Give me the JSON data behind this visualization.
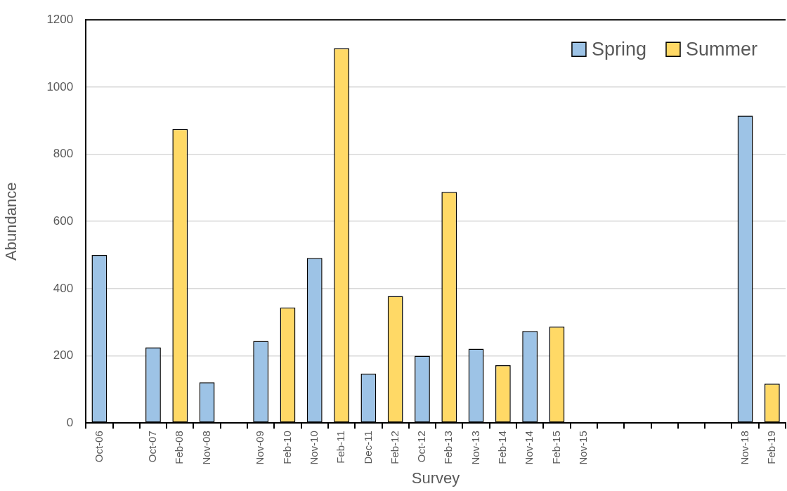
{
  "chart_data": {
    "type": "bar",
    "xlabel": "Survey",
    "ylabel": "Abundance",
    "categories": [
      "Oct-06",
      null,
      "Oct-07",
      "Feb-08",
      "Nov-08",
      null,
      "Nov-09",
      "Feb-10",
      "Nov-10",
      "Feb-11",
      "Dec-11",
      "Feb-12",
      "Oct-12",
      "Feb-13",
      "Nov-13",
      "Feb-14",
      "Nov-14",
      "Feb-15",
      "Nov-15",
      null,
      null,
      null,
      null,
      null,
      "Nov-18",
      "Feb-19"
    ],
    "series": [
      {
        "name": "Spring",
        "color": "#9dc3e6",
        "values": [
          500,
          null,
          225,
          null,
          121,
          null,
          244,
          null,
          491,
          null,
          147,
          null,
          200,
          null,
          221,
          null,
          274,
          null,
          null,
          null,
          null,
          null,
          null,
          null,
          915,
          null
        ]
      },
      {
        "name": "Summer",
        "color": "#ffd966",
        "values": [
          null,
          null,
          null,
          875,
          null,
          null,
          null,
          344,
          null,
          1115,
          null,
          378,
          null,
          688,
          null,
          172,
          null,
          287,
          null,
          null,
          null,
          null,
          null,
          null,
          null,
          117
        ]
      }
    ],
    "ylim": [
      0,
      1200
    ],
    "yticks": [
      0,
      200,
      400,
      600,
      800,
      1000,
      1200
    ],
    "grid": "y",
    "legend": "top right"
  }
}
